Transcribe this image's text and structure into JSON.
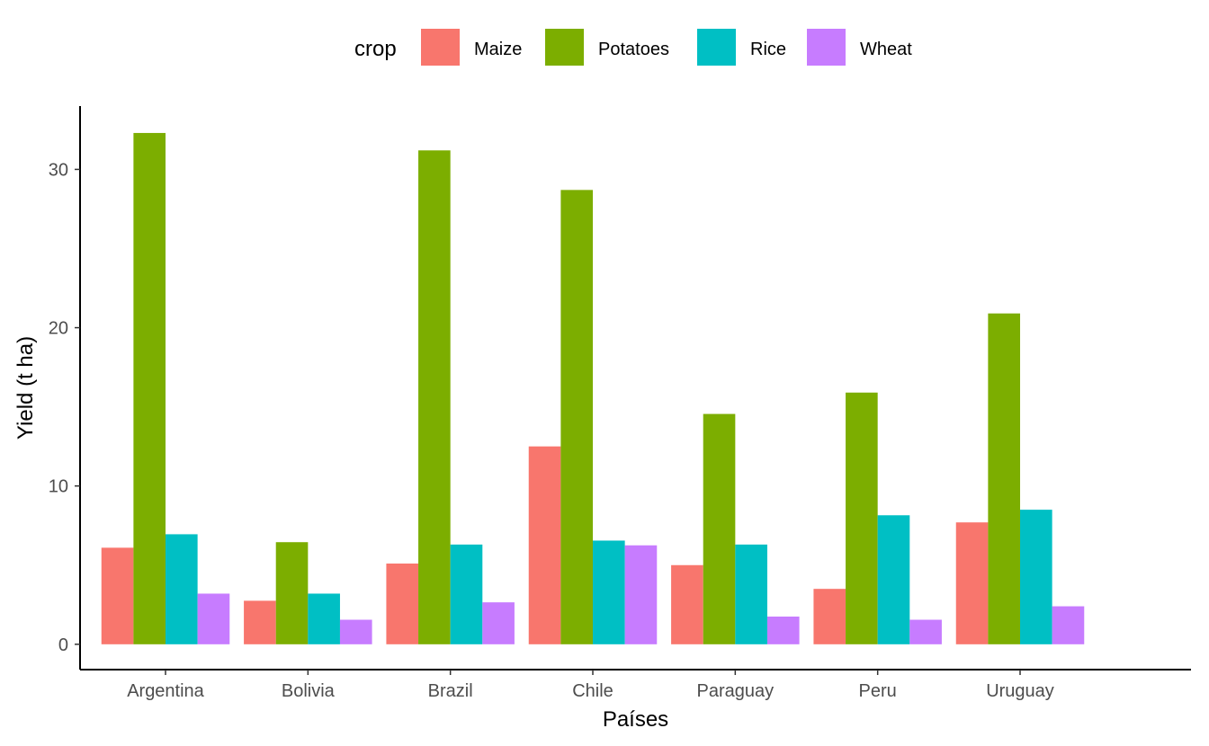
{
  "chart_data": {
    "type": "bar",
    "xlabel": "Países",
    "ylabel": "Yield (t ha)",
    "ylim": [
      -1.6,
      34.0
    ],
    "yticks": [
      0,
      10,
      20,
      30
    ],
    "grid": false,
    "legend": {
      "title": "crop",
      "placement": "top"
    },
    "categories": [
      "Argentina",
      "Bolivia",
      "Brazil",
      "Chile",
      "Paraguay",
      "Peru",
      "Uruguay"
    ],
    "series": [
      {
        "name": "Maize",
        "color": "#F8766D",
        "values": [
          6.1,
          2.75,
          5.1,
          12.5,
          5.0,
          3.5,
          7.7
        ]
      },
      {
        "name": "Potatoes",
        "color": "#7CAE00",
        "values": [
          32.3,
          6.45,
          31.2,
          28.7,
          14.55,
          15.9,
          20.9
        ]
      },
      {
        "name": "Rice",
        "color": "#00BFC4",
        "values": [
          6.95,
          3.2,
          6.3,
          6.55,
          6.3,
          8.15,
          8.5
        ]
      },
      {
        "name": "Wheat",
        "color": "#C77CFF",
        "values": [
          3.2,
          1.55,
          2.65,
          6.25,
          1.75,
          1.55,
          2.4
        ]
      }
    ]
  }
}
